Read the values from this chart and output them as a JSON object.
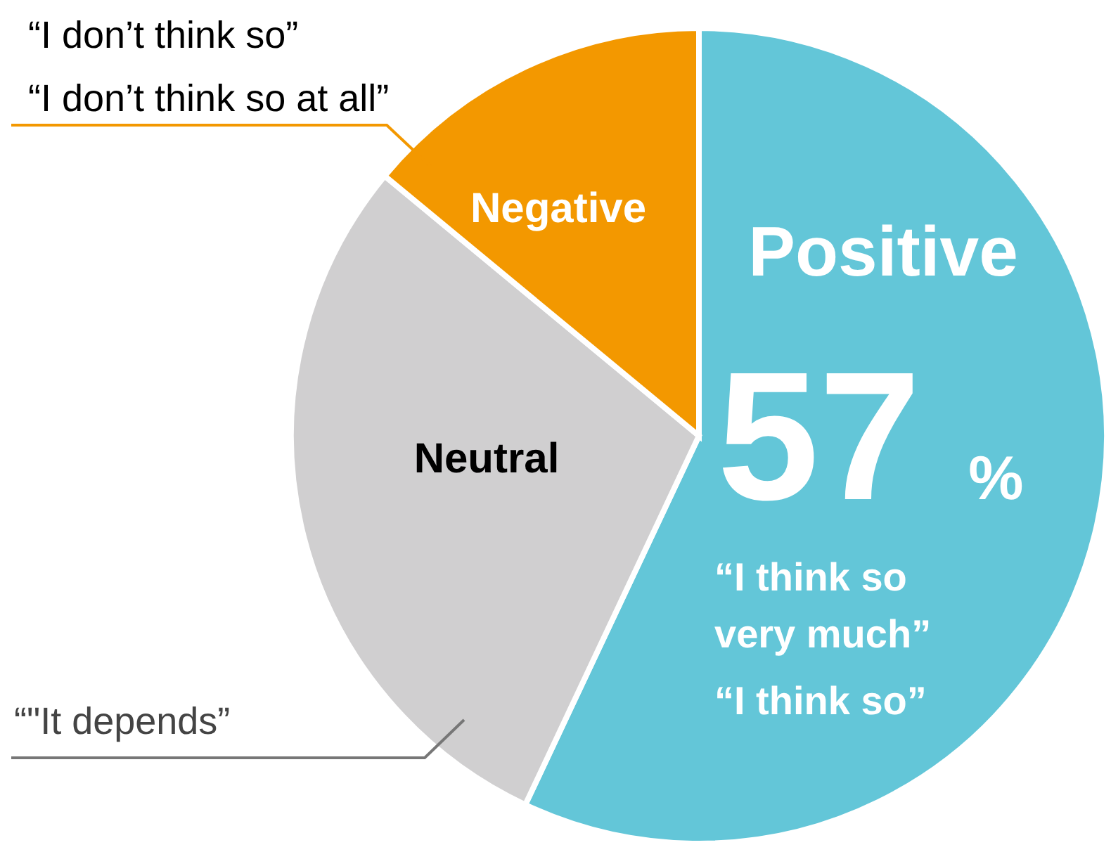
{
  "chart_data": {
    "type": "pie",
    "categories": [
      "Positive",
      "Neutral",
      "Negative"
    ],
    "values": [
      57,
      29,
      14
    ],
    "colors": [
      "#63c6d8",
      "#d0cfd0",
      "#f39800"
    ],
    "value_labels": [
      "57%",
      null,
      null
    ],
    "annotations": [
      "“I don’t think so”",
      "“I don’t think so at all”",
      "“I think so\nvery much”",
      "“I think so”",
      "“\"It depends”"
    ]
  }
}
